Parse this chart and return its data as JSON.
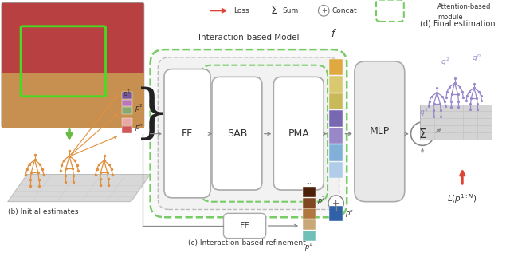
{
  "bg_color": "#ffffff",
  "title_ibm": "Interaction-based Model",
  "label_b": "(b) Initial estimates",
  "label_c": "(c) Interaction-based refinement",
  "label_d": "(d) Final estimation",
  "bar_f_colors": [
    "#a8c8e8",
    "#88b8d8",
    "#7090c0",
    "#8878b8",
    "#6858a8",
    "#c8b850",
    "#d8c870",
    "#e8a830",
    "#d49020"
  ],
  "bar_p_bottom_colors": [
    "#80c8c0",
    "#c8a878",
    "#b07840",
    "#906030",
    "#703820"
  ],
  "bar_input_n_colors": [
    "#d05050",
    "#e8a0a0"
  ],
  "bar_input_2_colors": [
    "#88a870",
    "#a870a8",
    "#805890"
  ],
  "arrow_color": "#888888",
  "orange_color": "#e09040",
  "green_arrow_color": "#66bb44",
  "red_arrow_color": "#dd4433",
  "green_dash_color": "#77cc66",
  "purple_color": "#9988cc",
  "text_color": "#333333"
}
